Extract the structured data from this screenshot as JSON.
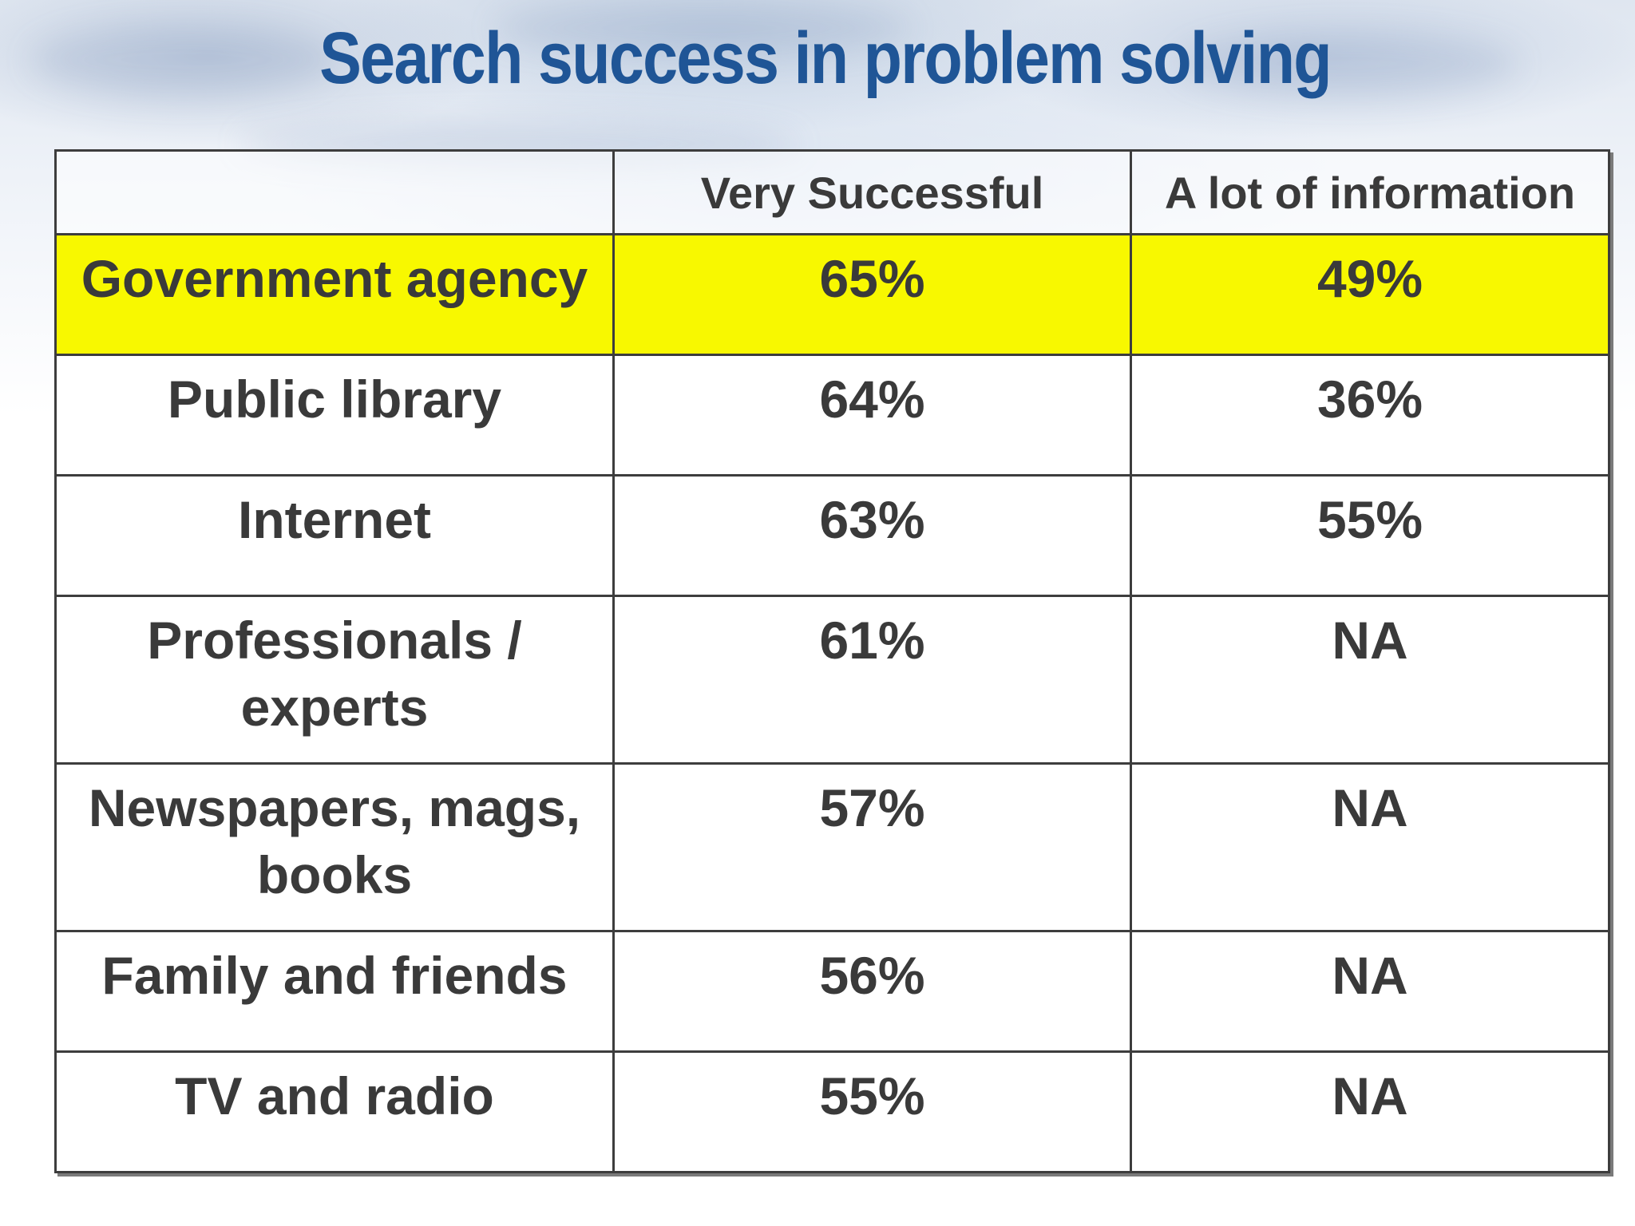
{
  "title": "Search success in problem solving",
  "colors": {
    "title": "#1f5596",
    "highlight": "#f8f800",
    "text": "#3a3a3a",
    "border": "#3d3d3d"
  },
  "table": {
    "headers": [
      "",
      "Very Successful",
      "A lot of information"
    ],
    "rows": [
      {
        "source": "Government agency",
        "very_successful": "65%",
        "a_lot_of_information": "49%",
        "highlighted": true
      },
      {
        "source": "Public library",
        "very_successful": "64%",
        "a_lot_of_information": "36%"
      },
      {
        "source": "Internet",
        "very_successful": "63%",
        "a_lot_of_information": "55%"
      },
      {
        "source": "Professionals / experts",
        "very_successful": "61%",
        "a_lot_of_information": "NA"
      },
      {
        "source": "Newspapers, mags, books",
        "very_successful": "57%",
        "a_lot_of_information": "NA"
      },
      {
        "source": "Family and friends",
        "very_successful": "56%",
        "a_lot_of_information": "NA"
      },
      {
        "source": "TV and radio",
        "very_successful": "55%",
        "a_lot_of_information": "NA"
      }
    ]
  }
}
